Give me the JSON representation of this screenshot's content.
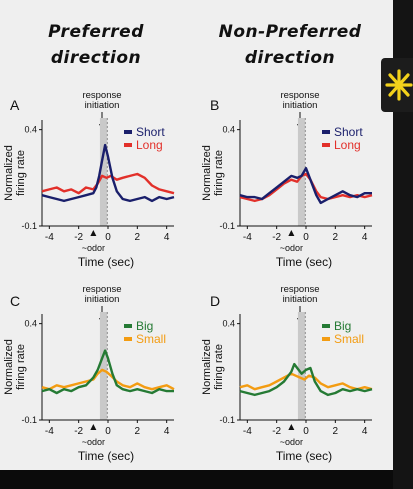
{
  "headings": {
    "preferred": [
      "Preferred",
      "direction"
    ],
    "nonpreferred": [
      "Non-Preferred",
      "direction"
    ]
  },
  "colors": {
    "navy": "#1a1f6b",
    "red": "#e2302a",
    "green": "#257a34",
    "orange": "#f39c12",
    "accent": "#f3d21b"
  },
  "sidebar": {
    "icon": "asterisk-icon"
  },
  "annotation": {
    "line1": "response",
    "line2": "initiation"
  },
  "common": {
    "ylabel_line1": "Normalized",
    "ylabel_line2": "firing rate",
    "xlabel": "Time (sec)",
    "odor_label": "~odor",
    "xticks": [
      "-4",
      "-2",
      "0",
      "2",
      "4"
    ],
    "ytick_top": "0.4",
    "ytick_bottom": "-0.1"
  },
  "chart_data": [
    {
      "panel": "A",
      "type": "line",
      "xlim": [
        -4.5,
        4.5
      ],
      "ylim": [
        -0.1,
        0.45
      ],
      "series": [
        {
          "name": "Short",
          "color": "#1a1f6b",
          "x": [
            -4.5,
            -4,
            -3.5,
            -3,
            -2.5,
            -2,
            -1.5,
            -1,
            -0.8,
            -0.6,
            -0.4,
            -0.2,
            0,
            0.3,
            0.6,
            1,
            1.5,
            2,
            2.5,
            3,
            3.5,
            4,
            4.5
          ],
          "y": [
            0.06,
            0.05,
            0.04,
            0.03,
            0.04,
            0.05,
            0.06,
            0.07,
            0.1,
            0.16,
            0.24,
            0.32,
            0.26,
            0.15,
            0.08,
            0.04,
            0.03,
            0.04,
            0.05,
            0.03,
            0.05,
            0.04,
            0.05
          ]
        },
        {
          "name": "Long",
          "color": "#e2302a",
          "x": [
            -4.5,
            -4,
            -3.5,
            -3,
            -2.5,
            -2,
            -1.5,
            -1,
            -0.7,
            -0.4,
            -0.1,
            0.2,
            0.6,
            1,
            1.5,
            2,
            2.5,
            3,
            3.5,
            4,
            4.5
          ],
          "y": [
            0.08,
            0.09,
            0.1,
            0.08,
            0.09,
            0.07,
            0.1,
            0.09,
            0.12,
            0.16,
            0.15,
            0.16,
            0.14,
            0.15,
            0.16,
            0.17,
            0.15,
            0.11,
            0.09,
            0.08,
            0.07
          ]
        }
      ]
    },
    {
      "panel": "B",
      "type": "line",
      "xlim": [
        -4.5,
        4.5
      ],
      "ylim": [
        -0.1,
        0.45
      ],
      "series": [
        {
          "name": "Short",
          "color": "#1a1f6b",
          "x": [
            -4.5,
            -4,
            -3.5,
            -3,
            -2.5,
            -2,
            -1.5,
            -1,
            -0.6,
            -0.3,
            0,
            0.3,
            0.7,
            1,
            1.5,
            2,
            2.5,
            3,
            3.5,
            4,
            4.5
          ],
          "y": [
            0.06,
            0.05,
            0.05,
            0.04,
            0.07,
            0.1,
            0.13,
            0.16,
            0.15,
            0.16,
            0.2,
            0.14,
            0.06,
            0.02,
            0.04,
            0.06,
            0.08,
            0.06,
            0.05,
            0.07,
            0.07
          ]
        },
        {
          "name": "Long",
          "color": "#e2302a",
          "x": [
            -4.5,
            -4,
            -3.5,
            -3,
            -2.5,
            -2,
            -1.5,
            -1,
            -0.6,
            -0.3,
            0,
            0.3,
            0.7,
            1,
            1.5,
            2,
            2.5,
            3,
            3.5,
            4,
            4.5
          ],
          "y": [
            0.05,
            0.04,
            0.03,
            0.04,
            0.06,
            0.09,
            0.12,
            0.14,
            0.13,
            0.16,
            0.17,
            0.14,
            0.08,
            0.05,
            0.04,
            0.05,
            0.06,
            0.05,
            0.06,
            0.05,
            0.06
          ]
        }
      ]
    },
    {
      "panel": "C",
      "type": "line",
      "xlim": [
        -4.5,
        4.5
      ],
      "ylim": [
        -0.1,
        0.45
      ],
      "series": [
        {
          "name": "Big",
          "color": "#257a34",
          "x": [
            -4.5,
            -4,
            -3.5,
            -3,
            -2.5,
            -2,
            -1.5,
            -1,
            -0.7,
            -0.4,
            -0.2,
            0,
            0.3,
            0.6,
            1,
            1.5,
            2,
            2.5,
            3,
            3.5,
            4,
            4.5
          ],
          "y": [
            0.05,
            0.06,
            0.04,
            0.06,
            0.05,
            0.07,
            0.08,
            0.12,
            0.16,
            0.22,
            0.26,
            0.22,
            0.14,
            0.08,
            0.06,
            0.05,
            0.06,
            0.05,
            0.04,
            0.06,
            0.05,
            0.05
          ]
        },
        {
          "name": "Small",
          "color": "#f39c12",
          "x": [
            -4.5,
            -4,
            -3.5,
            -3,
            -2.5,
            -2,
            -1.5,
            -1,
            -0.7,
            -0.4,
            -0.1,
            0.2,
            0.6,
            1,
            1.5,
            2,
            2.5,
            3,
            3.5,
            4,
            4.5
          ],
          "y": [
            0.07,
            0.06,
            0.08,
            0.07,
            0.08,
            0.09,
            0.1,
            0.11,
            0.14,
            0.16,
            0.15,
            0.13,
            0.1,
            0.08,
            0.07,
            0.09,
            0.07,
            0.06,
            0.07,
            0.08,
            0.06
          ]
        }
      ]
    },
    {
      "panel": "D",
      "type": "line",
      "xlim": [
        -4.5,
        4.5
      ],
      "ylim": [
        -0.1,
        0.45
      ],
      "series": [
        {
          "name": "Big",
          "color": "#257a34",
          "x": [
            -4.5,
            -4,
            -3.5,
            -3,
            -2.5,
            -2,
            -1.5,
            -1,
            -0.8,
            -0.6,
            -0.3,
            0,
            0.3,
            0.6,
            1,
            1.5,
            2,
            2.5,
            3,
            3.5,
            4,
            4.5
          ],
          "y": [
            0.05,
            0.04,
            0.03,
            0.04,
            0.05,
            0.07,
            0.1,
            0.15,
            0.19,
            0.17,
            0.14,
            0.16,
            0.17,
            0.1,
            0.05,
            0.03,
            0.04,
            0.06,
            0.05,
            0.06,
            0.05,
            0.06
          ]
        },
        {
          "name": "Small",
          "color": "#f39c12",
          "x": [
            -4.5,
            -4,
            -3.5,
            -3,
            -2.5,
            -2,
            -1.5,
            -1,
            -0.7,
            -0.4,
            -0.1,
            0.2,
            0.6,
            1,
            1.5,
            2,
            2.5,
            3,
            3.5,
            4,
            4.5
          ],
          "y": [
            0.07,
            0.08,
            0.06,
            0.07,
            0.08,
            0.1,
            0.12,
            0.14,
            0.13,
            0.12,
            0.11,
            0.13,
            0.12,
            0.09,
            0.07,
            0.08,
            0.09,
            0.07,
            0.06,
            0.07,
            0.06
          ]
        }
      ]
    }
  ]
}
